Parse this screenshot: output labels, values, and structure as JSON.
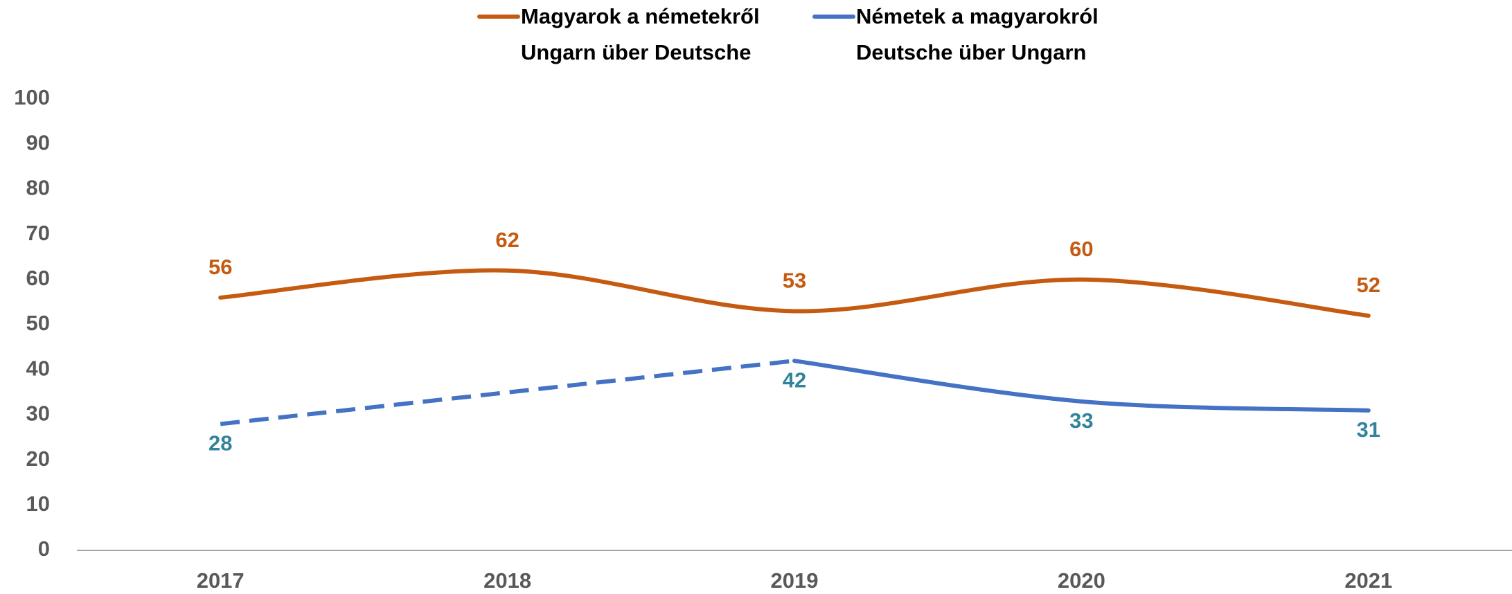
{
  "chart_data": {
    "type": "line",
    "categories": [
      "2017",
      "2018",
      "2019",
      "2020",
      "2021"
    ],
    "series": [
      {
        "name": [
          "Magyarok a németekről",
          "Ungarn über Deutsche"
        ],
        "color": "#c55a11",
        "label_color": "#c55a11",
        "label_side": "above",
        "smooth": true,
        "values": [
          56,
          62,
          53,
          60,
          52
        ]
      },
      {
        "name": [
          "Németek a magyarokról",
          "Deutsche über Ungarn"
        ],
        "color": "#4472c4",
        "label_color": "#31849b",
        "label_side": "below",
        "smooth": true,
        "dashed_to_index": 2,
        "values": [
          28,
          35,
          42,
          33,
          31
        ],
        "labeled": [
          true,
          false,
          true,
          true,
          true
        ]
      }
    ],
    "ylim": [
      0,
      100
    ],
    "yticks": [
      0,
      10,
      20,
      30,
      40,
      50,
      60,
      70,
      80,
      90,
      100
    ],
    "grid": false
  }
}
